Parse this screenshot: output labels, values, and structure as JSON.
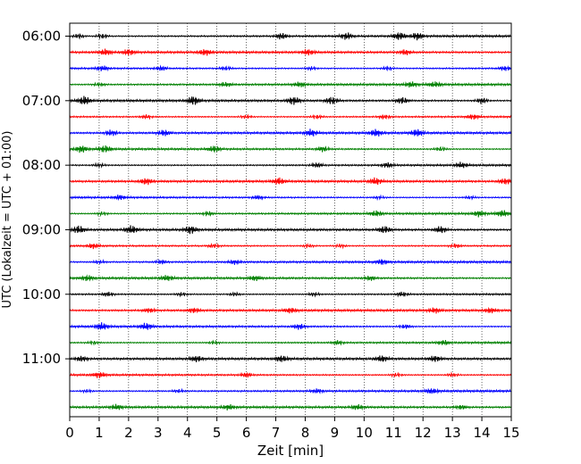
{
  "chart_data": {
    "type": "line",
    "title": "",
    "xlabel": "Zeit  [min]",
    "ylabel": "UTC (Lokalzeit = UTC + 01:00)",
    "xlim": [
      0,
      15
    ],
    "x_ticks": [
      "0",
      "1",
      "2",
      "3",
      "4",
      "5",
      "6",
      "7",
      "8",
      "9",
      "10",
      "11",
      "12",
      "13",
      "14",
      "15"
    ],
    "y_ticks": [
      "06:00",
      "07:00",
      "08:00",
      "09:00",
      "10:00",
      "11:00"
    ],
    "grid": "vertical dotted at each minute",
    "legend": "none",
    "trace_interval_min": 15,
    "start_time": "06:00",
    "color_cycle": [
      "#000000",
      "#ff0000",
      "#0000ff",
      "#008000"
    ],
    "series": [
      {
        "time": "06:00",
        "color": "#000000",
        "bursts_min": [
          0.3,
          1.1,
          7.2,
          9.4,
          11.2,
          11.8
        ],
        "amp": 0.8
      },
      {
        "time": "06:15",
        "color": "#ff0000",
        "bursts_min": [
          1.2,
          2.0,
          4.6,
          8.1,
          11.4
        ],
        "amp": 0.6
      },
      {
        "time": "06:30",
        "color": "#0000ff",
        "bursts_min": [
          1.1,
          3.1,
          5.3,
          8.2,
          10.8,
          14.8
        ],
        "amp": 0.6
      },
      {
        "time": "06:45",
        "color": "#008000",
        "bursts_min": [
          1.0,
          5.3,
          7.8,
          11.6,
          12.4
        ],
        "amp": 0.5
      },
      {
        "time": "07:00",
        "color": "#000000",
        "bursts_min": [
          0.5,
          4.2,
          7.6,
          8.9,
          11.3,
          14.0
        ],
        "amp": 0.9
      },
      {
        "time": "07:15",
        "color": "#ff0000",
        "bursts_min": [
          2.6,
          6.0,
          8.4,
          10.7,
          13.7
        ],
        "amp": 0.6
      },
      {
        "time": "07:30",
        "color": "#0000ff",
        "bursts_min": [
          1.4,
          3.2,
          8.2,
          10.4,
          11.8
        ],
        "amp": 0.7
      },
      {
        "time": "07:45",
        "color": "#008000",
        "bursts_min": [
          0.4,
          1.2,
          4.9,
          8.6,
          12.6
        ],
        "amp": 0.7
      },
      {
        "time": "08:00",
        "color": "#000000",
        "bursts_min": [
          1.0,
          8.4,
          10.8,
          13.3
        ],
        "amp": 0.6
      },
      {
        "time": "08:15",
        "color": "#ff0000",
        "bursts_min": [
          2.6,
          7.1,
          10.4,
          14.8
        ],
        "amp": 0.7
      },
      {
        "time": "08:30",
        "color": "#0000ff",
        "bursts_min": [
          1.7,
          6.4,
          10.5,
          13.6
        ],
        "amp": 0.5
      },
      {
        "time": "08:45",
        "color": "#008000",
        "bursts_min": [
          1.1,
          4.7,
          10.4,
          13.9,
          14.7
        ],
        "amp": 0.6
      },
      {
        "time": "09:00",
        "color": "#000000",
        "bursts_min": [
          0.3,
          2.1,
          4.1,
          10.7,
          12.6
        ],
        "amp": 0.8
      },
      {
        "time": "09:15",
        "color": "#ff0000",
        "bursts_min": [
          0.8,
          4.9,
          8.1,
          9.2,
          13.1
        ],
        "amp": 0.6
      },
      {
        "time": "09:30",
        "color": "#0000ff",
        "bursts_min": [
          1.0,
          3.1,
          5.6,
          10.6
        ],
        "amp": 0.5
      },
      {
        "time": "09:45",
        "color": "#008000",
        "bursts_min": [
          0.6,
          3.3,
          6.3,
          10.2
        ],
        "amp": 0.5
      },
      {
        "time": "10:00",
        "color": "#000000",
        "bursts_min": [
          1.3,
          3.8,
          5.6,
          8.3,
          11.3
        ],
        "amp": 0.6
      },
      {
        "time": "10:15",
        "color": "#ff0000",
        "bursts_min": [
          2.7,
          4.2,
          7.5,
          12.4,
          14.3
        ],
        "amp": 0.5
      },
      {
        "time": "10:30",
        "color": "#0000ff",
        "bursts_min": [
          1.1,
          2.6,
          7.8,
          11.4
        ],
        "amp": 0.7
      },
      {
        "time": "10:45",
        "color": "#008000",
        "bursts_min": [
          0.8,
          4.9,
          9.1,
          12.7
        ],
        "amp": 0.5
      },
      {
        "time": "11:00",
        "color": "#000000",
        "bursts_min": [
          0.4,
          4.3,
          7.2,
          10.6,
          12.4
        ],
        "amp": 0.6
      },
      {
        "time": "11:15",
        "color": "#ff0000",
        "bursts_min": [
          1.0,
          6.0,
          11.1,
          13.0
        ],
        "amp": 0.6
      },
      {
        "time": "11:30",
        "color": "#0000ff",
        "bursts_min": [
          0.6,
          3.7,
          8.4,
          12.3
        ],
        "amp": 0.5
      },
      {
        "time": "11:45",
        "color": "#008000",
        "bursts_min": [
          1.6,
          5.4,
          9.8,
          13.3
        ],
        "amp": 0.5
      }
    ]
  }
}
